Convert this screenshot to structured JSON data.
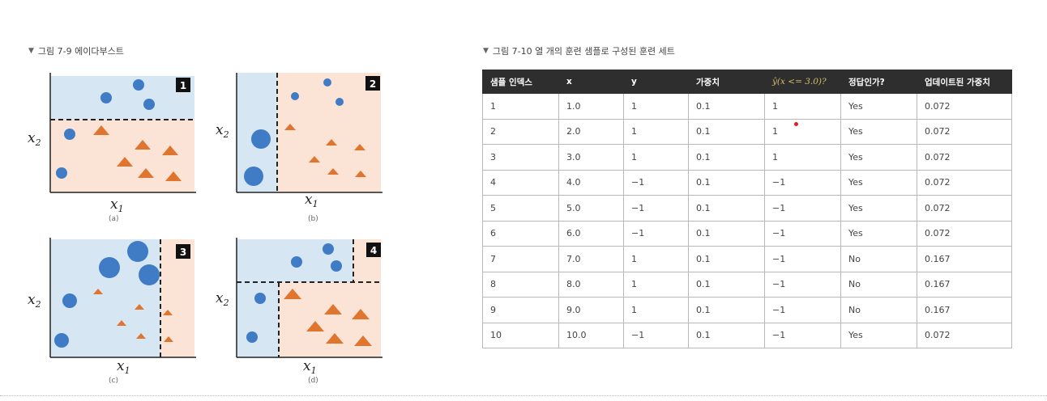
{
  "figure9": {
    "title": "그림 7-9 에이다부스트",
    "panels": [
      {
        "num": "1",
        "caption": "(a)"
      },
      {
        "num": "2",
        "caption": "(b)"
      },
      {
        "num": "3",
        "caption": "(c)"
      },
      {
        "num": "4",
        "caption": "(d)"
      }
    ],
    "axis_x": "x",
    "axis_x_sub": "1",
    "axis_y": "x",
    "axis_y_sub": "2",
    "colors": {
      "blue_region": "#d7e6f3",
      "orange_region": "#fbe3d6",
      "circle": "#3f7cc5",
      "triangle": "#e07530"
    }
  },
  "figure10": {
    "title": "그림 7-10 열 개의 훈련 샘플로 구성된 훈련 세트",
    "columns": [
      "샘플 인덱스",
      "x",
      "y",
      "가중치",
      "ŷ(x <= 3.0)?",
      "정답인가?",
      "업데이트된 가중치"
    ],
    "rows": [
      [
        "1",
        "1.0",
        "1",
        "0.1",
        "1",
        "Yes",
        "0.072"
      ],
      [
        "2",
        "2.0",
        "1",
        "0.1",
        "1",
        "Yes",
        "0.072"
      ],
      [
        "3",
        "3.0",
        "1",
        "0.1",
        "1",
        "Yes",
        "0.072"
      ],
      [
        "4",
        "4.0",
        "−1",
        "0.1",
        "−1",
        "Yes",
        "0.072"
      ],
      [
        "5",
        "5.0",
        "−1",
        "0.1",
        "−1",
        "Yes",
        "0.072"
      ],
      [
        "6",
        "6.0",
        "−1",
        "0.1",
        "−1",
        "Yes",
        "0.072"
      ],
      [
        "7",
        "7.0",
        "1",
        "0.1",
        "−1",
        "No",
        "0.167"
      ],
      [
        "8",
        "8.0",
        "1",
        "0.1",
        "−1",
        "No",
        "0.167"
      ],
      [
        "9",
        "9.0",
        "1",
        "0.1",
        "−1",
        "No",
        "0.167"
      ],
      [
        "10",
        "10.0",
        "−1",
        "0.1",
        "−1",
        "Yes",
        "0.072"
      ]
    ]
  }
}
